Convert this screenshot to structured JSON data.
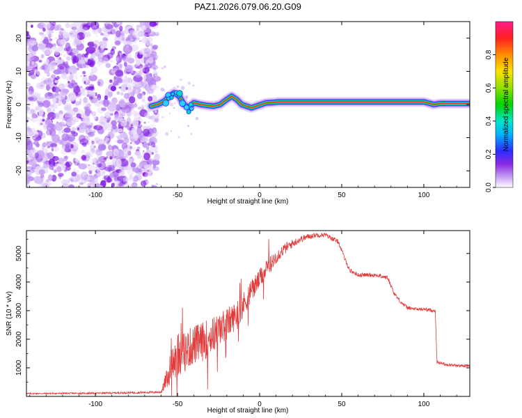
{
  "title": "PAZ1.2026.079.06.20.G09",
  "colors": {
    "snr_line": "#e23b3b",
    "noise": "#8a2be2",
    "frame": "#000000"
  },
  "chart_data": [
    {
      "type": "heatmap",
      "title": "PAZ1.2026.079.06.20.G09",
      "xlabel": "Height of straight line (km)",
      "ylabel": "Frequency (Hz)",
      "xlim": [
        -142,
        128
      ],
      "ylim": [
        -25,
        25
      ],
      "xticks": [
        -100,
        -50,
        0,
        50,
        100
      ],
      "yticks": [
        -20,
        -10,
        0,
        10,
        20
      ],
      "noise_region_x": [
        -142,
        -65
      ],
      "carrier": {
        "x": [
          -66,
          -62,
          -58,
          -55,
          -52,
          -49,
          -46,
          -43,
          -40,
          -36,
          -32,
          -28,
          -24,
          -20,
          -17,
          -14,
          -11,
          -8,
          -5,
          -2,
          1,
          4,
          8,
          12,
          20,
          40,
          60,
          80,
          100,
          106,
          110,
          128
        ],
        "freq": [
          -0.5,
          0,
          1,
          2.5,
          3.5,
          2.5,
          0,
          -1,
          0.5,
          0,
          -0.3,
          -0.5,
          0,
          1.5,
          2.5,
          1.5,
          0,
          -0.5,
          -1,
          -0.5,
          0,
          0.5,
          0.6,
          0.8,
          0.8,
          0.8,
          0.8,
          0.8,
          0.8,
          0,
          0.3,
          0.3
        ]
      },
      "colorbar": {
        "label": "Normalized spectral amplitude",
        "ticks": [
          "0.0",
          "0.2",
          "0.4",
          "0.6",
          "0.8"
        ],
        "range": [
          0,
          1
        ]
      }
    },
    {
      "type": "line",
      "xlabel": "Height of straight line (km)",
      "ylabel": "SNR (10 * v/v)",
      "xlim": [
        -142,
        128
      ],
      "ylim": [
        0,
        5800
      ],
      "xticks": [
        -100,
        -50,
        0,
        50,
        100
      ],
      "yticks": [
        1000,
        2000,
        3000,
        4000,
        5000
      ],
      "series": [
        {
          "name": "SNR",
          "envelope_x": [
            -142,
            -100,
            -60,
            -56,
            -54,
            -52,
            -48,
            -44,
            -40,
            -35,
            -30,
            -25,
            -20,
            -15,
            -10,
            -5,
            0,
            5,
            10,
            15,
            20,
            25,
            30,
            35,
            40,
            45,
            48,
            52,
            55,
            60,
            70,
            78,
            82,
            86,
            90,
            95,
            100,
            106,
            107,
            108,
            115,
            122,
            128
          ],
          "envelope_mean": [
            100,
            110,
            150,
            700,
            1100,
            1200,
            1450,
            1650,
            1800,
            1900,
            2100,
            2300,
            2550,
            2800,
            3200,
            3700,
            4100,
            4500,
            4900,
            5150,
            5350,
            5500,
            5600,
            5650,
            5650,
            5500,
            5400,
            4800,
            4400,
            4250,
            4250,
            4150,
            3600,
            3300,
            3100,
            3050,
            3050,
            3000,
            3000,
            1200,
            1100,
            1080,
            1070
          ],
          "envelope_noise": [
            25,
            30,
            40,
            400,
            600,
            700,
            700,
            700,
            700,
            700,
            650,
            600,
            550,
            500,
            450,
            400,
            350,
            300,
            250,
            200,
            150,
            120,
            100,
            90,
            80,
            80,
            80,
            80,
            80,
            70,
            70,
            70,
            80,
            70,
            70,
            60,
            60,
            60,
            60,
            50,
            50,
            50,
            50
          ]
        }
      ]
    }
  ]
}
